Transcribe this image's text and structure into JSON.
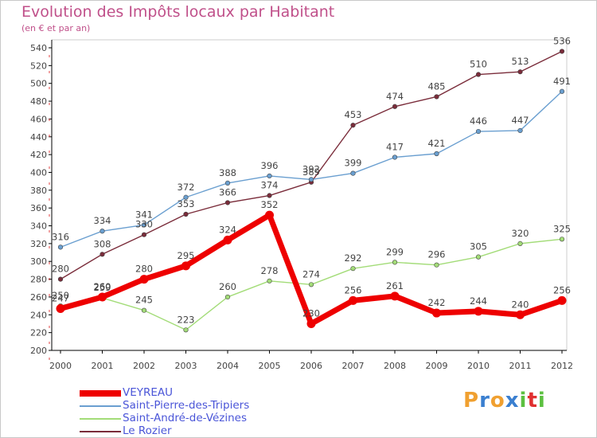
{
  "chart_data": {
    "type": "line",
    "title": "Evolution des Impôts locaux par Habitant",
    "subtitle": "(en € et par an)",
    "x": [
      "2000",
      "2001",
      "2002",
      "2003",
      "2004",
      "2005",
      "2006",
      "2007",
      "2008",
      "2009",
      "2010",
      "2011",
      "2012"
    ],
    "ylim": [
      200,
      540
    ],
    "yticks": [
      200,
      220,
      240,
      260,
      280,
      300,
      320,
      340,
      360,
      380,
      400,
      420,
      440,
      460,
      480,
      500,
      520,
      540
    ],
    "grid": false,
    "legend": "bottom-left",
    "series": [
      {
        "name": "VEYREAU",
        "color": "#ee0000",
        "values": [
          247,
          260,
          280,
          295,
          324,
          352,
          230,
          256,
          261,
          242,
          244,
          240,
          256
        ]
      },
      {
        "name": "Saint-Pierre-des-Tripiers",
        "color": "#6a9fd0",
        "values": [
          316,
          334,
          341,
          372,
          388,
          396,
          392,
          399,
          417,
          421,
          446,
          447,
          491
        ]
      },
      {
        "name": "Saint-André-de-Vézines",
        "color": "#a3dc78",
        "values": [
          250,
          259,
          245,
          223,
          260,
          278,
          274,
          292,
          299,
          296,
          305,
          320,
          325
        ]
      },
      {
        "name": "Le Rozier",
        "color": "#7a2c3a",
        "values": [
          280,
          308,
          330,
          353,
          366,
          374,
          389,
          453,
          474,
          485,
          510,
          513,
          536
        ]
      }
    ],
    "labels": [
      {
        "series": 0,
        "texts": [
          "247",
          "260",
          "280",
          "295",
          "324",
          "352",
          "230",
          "256",
          "261",
          "242",
          "244",
          "240",
          "256"
        ]
      },
      {
        "series": 1,
        "texts": [
          "316",
          "334",
          "341",
          "372",
          "388",
          "396",
          "392",
          "399",
          "417",
          "421",
          "446",
          "447",
          "491"
        ]
      },
      {
        "series": 2,
        "texts": [
          "250",
          "259",
          "245",
          "223",
          "260",
          "278",
          "274",
          "292",
          "299",
          "296",
          "305",
          "320",
          "325"
        ]
      },
      {
        "series": 3,
        "texts": [
          "280",
          "308",
          "330",
          "353",
          "366",
          "374",
          "389",
          "453",
          "474",
          "485",
          "510",
          "513",
          "536"
        ]
      }
    ]
  },
  "logo": {
    "text": "Proxiti",
    "colors": [
      "#f0a030",
      "#3a7fd0",
      "#f0a030",
      "#3a7fd0",
      "#5cc040",
      "#e03030",
      "#5cc040"
    ]
  }
}
